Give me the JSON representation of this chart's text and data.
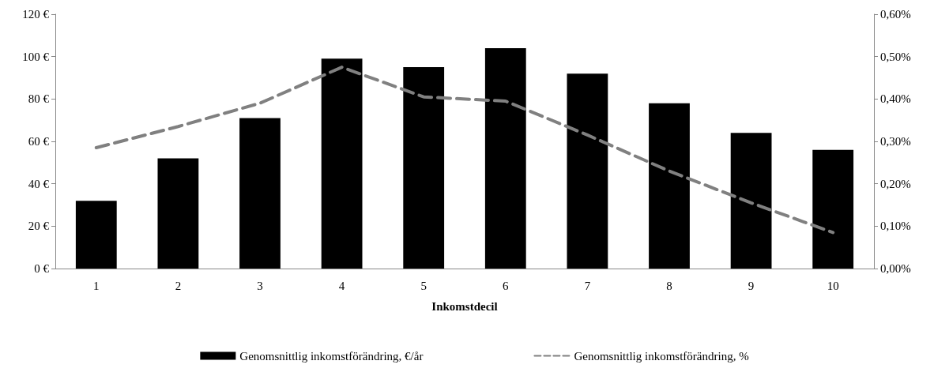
{
  "chart_data": {
    "type": "bar",
    "xlabel": "Inkomstdecil",
    "categories": [
      "1",
      "2",
      "3",
      "4",
      "5",
      "6",
      "7",
      "8",
      "9",
      "10"
    ],
    "series": [
      {
        "name": "Genomsnittlig inkomstförändring, €/år",
        "color": "#000000",
        "values": [
          32,
          52,
          71,
          99,
          95,
          104,
          92,
          78,
          64,
          56
        ]
      },
      {
        "name": "Genomsnittlig inkomstförändring, %",
        "type": "line",
        "axis": "y2",
        "color": "#808080",
        "line_style": "dashed",
        "marker": "none",
        "values": [
          0.285,
          0.335,
          0.39,
          0.475,
          0.405,
          0.395,
          0.315,
          0.23,
          0.155,
          0.085
        ]
      }
    ],
    "ylim": [
      0,
      120
    ],
    "yticks": [
      {
        "value": 0,
        "label": "0 €"
      },
      {
        "value": 20,
        "label": "20 €"
      },
      {
        "value": 40,
        "label": "40 €"
      },
      {
        "value": 60,
        "label": "60 €"
      },
      {
        "value": 80,
        "label": "80 €"
      },
      {
        "value": 100,
        "label": "100 €"
      },
      {
        "value": 120,
        "label": "120 €"
      }
    ],
    "y2lim": [
      0,
      0.6
    ],
    "y2ticks": [
      {
        "value": 0,
        "label": "0,00%"
      },
      {
        "value": 0.1,
        "label": "0,10%"
      },
      {
        "value": 0.2,
        "label": "0,20%"
      },
      {
        "value": 0.3,
        "label": "0,30%"
      },
      {
        "value": 0.4,
        "label": "0,40%"
      },
      {
        "value": 0.5,
        "label": "0,50%"
      },
      {
        "value": 0.6,
        "label": "0,60%"
      }
    ],
    "grid": false,
    "legend": "bottom"
  }
}
